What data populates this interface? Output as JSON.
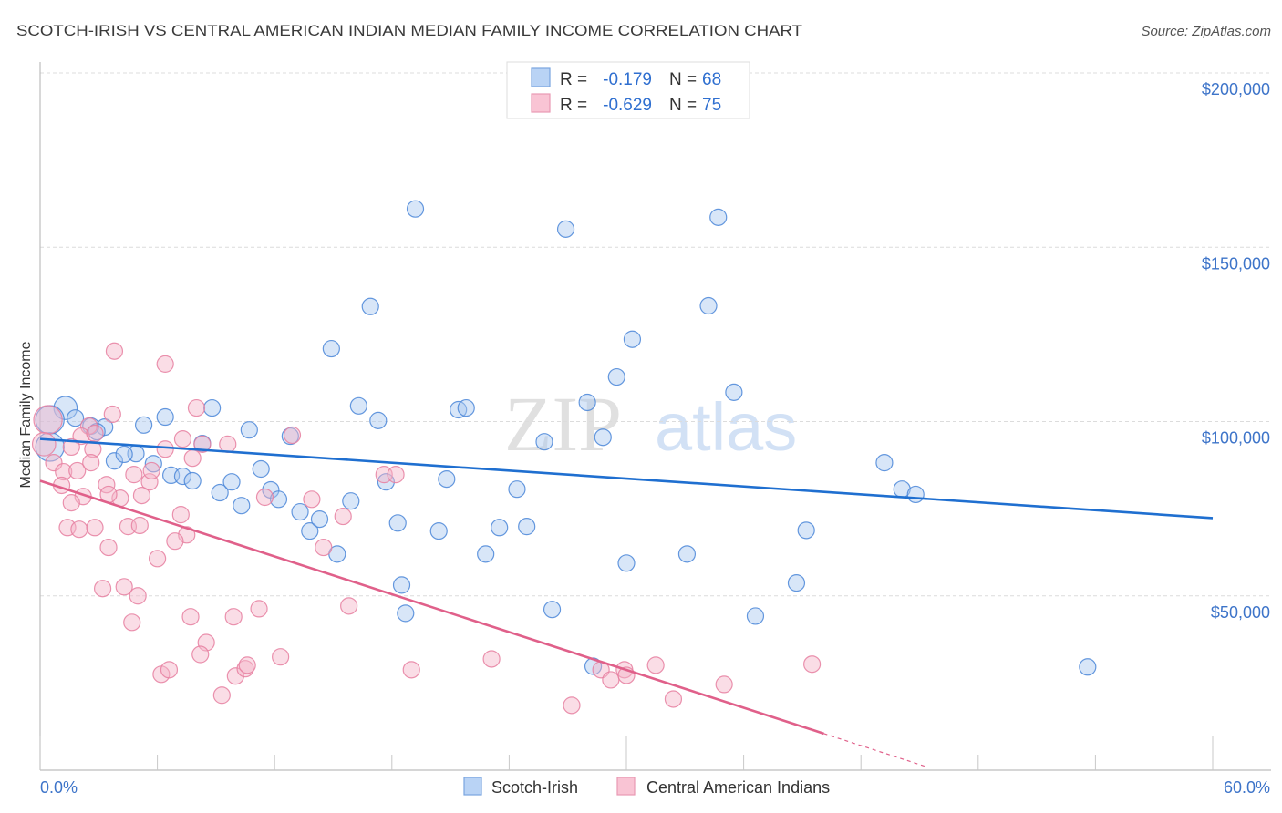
{
  "header": {
    "title": "SCOTCH-IRISH VS CENTRAL AMERICAN INDIAN MEDIAN FAMILY INCOME CORRELATION CHART",
    "source": "Source: ZipAtlas.com"
  },
  "watermark": {
    "zip": "ZIP",
    "atlas": "atlas"
  },
  "legend_top": [
    {
      "r_label": "R =",
      "r_value": "-0.179",
      "n_label": "N =",
      "n_value": "68"
    },
    {
      "r_label": "R =",
      "r_value": "-0.629",
      "n_label": "N =",
      "n_value": "75"
    }
  ],
  "legend_bottom": [
    {
      "label": "Scotch-Irish"
    },
    {
      "label": "Central American Indians"
    }
  ],
  "colors": {
    "scotch_irish_fill": "#a9c8f0",
    "scotch_irish_stroke": "#4a86d8",
    "scotch_irish_line": "#1f6fd0",
    "central_american_fill": "#f5b3c8",
    "central_american_stroke": "#e67fa0",
    "central_american_line": "#e0608a",
    "tick_label": "#3d74c9"
  },
  "chart_data": {
    "type": "scatter",
    "title": "SCOTCH-IRISH VS CENTRAL AMERICAN INDIAN MEDIAN FAMILY INCOME CORRELATION CHART",
    "xlabel": "",
    "ylabel": "Median Family Income",
    "xlim": [
      0,
      60
    ],
    "ylim": [
      0,
      210000
    ],
    "grid": true,
    "legend_position": "top-center",
    "x_ticks": [
      0,
      6,
      12,
      18,
      24,
      30,
      36,
      42,
      48,
      54,
      60
    ],
    "x_major_ticks": [
      0,
      30,
      60
    ],
    "x_tick_labels": [
      {
        "value": 0,
        "label": "0.0%"
      },
      {
        "value": 60,
        "label": "60.0%"
      }
    ],
    "y_ticks": [
      {
        "value": 50000,
        "label": "$50,000"
      },
      {
        "value": 100000,
        "label": "$100,000"
      },
      {
        "value": 150000,
        "label": "$150,000"
      },
      {
        "value": 200000,
        "label": "$200,000"
      }
    ],
    "series": [
      {
        "name": "Scotch-Irish",
        "key": "scotch_irish",
        "r": -0.179,
        "n": 68,
        "trend": {
          "x": [
            0,
            60
          ],
          "y": [
            95000,
            72300
          ]
        },
        "points": [
          [
            1.3,
            103900,
            2
          ],
          [
            0.5,
            100500,
            3
          ],
          [
            0.5,
            92700,
            3
          ],
          [
            1.8,
            101000,
            1
          ],
          [
            2.6,
            98700,
            1
          ],
          [
            3.3,
            98400,
            1
          ],
          [
            2.9,
            97100,
            1
          ],
          [
            3.8,
            88700,
            1
          ],
          [
            4.9,
            90800,
            1
          ],
          [
            4.3,
            90600,
            1
          ],
          [
            5.3,
            99000,
            1
          ],
          [
            5.8,
            87900,
            1
          ],
          [
            6.4,
            101300,
            1
          ],
          [
            6.7,
            84600,
            1
          ],
          [
            7.3,
            84300,
            1
          ],
          [
            7.8,
            83000,
            1
          ],
          [
            8.3,
            93700,
            1
          ],
          [
            8.8,
            103900,
            1
          ],
          [
            9.2,
            79600,
            1
          ],
          [
            9.8,
            82700,
            1
          ],
          [
            10.3,
            75900,
            1
          ],
          [
            10.7,
            97600,
            1
          ],
          [
            11.3,
            86400,
            1
          ],
          [
            11.8,
            80400,
            1
          ],
          [
            12.2,
            77700,
            1
          ],
          [
            12.8,
            95800,
            1
          ],
          [
            13.3,
            74100,
            1
          ],
          [
            13.8,
            68600,
            1
          ],
          [
            14.3,
            72000,
            1
          ],
          [
            14.9,
            120900,
            1
          ],
          [
            15.2,
            62000,
            1
          ],
          [
            15.9,
            77200,
            1
          ],
          [
            16.3,
            104500,
            1
          ],
          [
            16.9,
            133000,
            1
          ],
          [
            17.3,
            100300,
            1
          ],
          [
            17.7,
            82700,
            1
          ],
          [
            18.3,
            70900,
            1
          ],
          [
            18.5,
            53100,
            1
          ],
          [
            18.7,
            45000,
            1
          ],
          [
            19.2,
            161000,
            1
          ],
          [
            20.4,
            68600,
            1
          ],
          [
            20.8,
            83500,
            1
          ],
          [
            21.4,
            103400,
            1
          ],
          [
            21.8,
            103900,
            1
          ],
          [
            22.8,
            62000,
            1
          ],
          [
            23.5,
            69600,
            1
          ],
          [
            24.4,
            80600,
            1
          ],
          [
            24.9,
            69900,
            1
          ],
          [
            25.8,
            94200,
            1
          ],
          [
            26.2,
            46100,
            1
          ],
          [
            26.9,
            155200,
            1
          ],
          [
            28.0,
            105500,
            1
          ],
          [
            28.3,
            29800,
            1
          ],
          [
            28.8,
            95500,
            1
          ],
          [
            29.5,
            112800,
            1
          ],
          [
            30.0,
            59400,
            1
          ],
          [
            30.3,
            123600,
            1
          ],
          [
            33.1,
            62000,
            1
          ],
          [
            34.2,
            133200,
            1
          ],
          [
            34.7,
            158600,
            1
          ],
          [
            35.5,
            108400,
            1
          ],
          [
            36.6,
            44200,
            1
          ],
          [
            38.7,
            53700,
            1
          ],
          [
            39.2,
            68800,
            1
          ],
          [
            43.2,
            88200,
            1
          ],
          [
            44.1,
            80600,
            1
          ],
          [
            44.8,
            79100,
            1
          ],
          [
            53.6,
            29600,
            1
          ]
        ]
      },
      {
        "name": "Central American Indians",
        "key": "central_american",
        "r": -0.629,
        "n": 75,
        "trend": {
          "x": [
            0,
            40.1
          ],
          "y": [
            83000,
            10500
          ],
          "dashed_extension": {
            "x": [
              40.1,
              45.4
            ],
            "y": [
              10500,
              900
            ]
          }
        },
        "points": [
          [
            3.8,
            120200,
            1
          ],
          [
            6.4,
            116500,
            1
          ],
          [
            8.0,
            103900,
            1
          ],
          [
            3.7,
            102100,
            1
          ],
          [
            2.5,
            98700,
            1
          ],
          [
            2.1,
            95800,
            1
          ],
          [
            0.4,
            100500,
            3
          ],
          [
            0.2,
            93500,
            2
          ],
          [
            0.7,
            88200,
            1
          ],
          [
            1.2,
            85600,
            1
          ],
          [
            1.9,
            85900,
            1
          ],
          [
            1.6,
            92700,
            1
          ],
          [
            2.8,
            96600,
            1
          ],
          [
            2.7,
            92100,
            1
          ],
          [
            1.1,
            81700,
            1
          ],
          [
            2.6,
            88200,
            1
          ],
          [
            3.4,
            81900,
            1
          ],
          [
            2.2,
            78500,
            1
          ],
          [
            1.6,
            76700,
            1
          ],
          [
            4.8,
            84800,
            1
          ],
          [
            5.6,
            82700,
            1
          ],
          [
            5.7,
            85900,
            1
          ],
          [
            6.4,
            92100,
            1
          ],
          [
            7.3,
            95000,
            1
          ],
          [
            7.8,
            89500,
            1
          ],
          [
            8.3,
            93500,
            1
          ],
          [
            9.6,
            93500,
            1
          ],
          [
            5.2,
            78800,
            1
          ],
          [
            4.1,
            78000,
            1
          ],
          [
            4.5,
            69900,
            1
          ],
          [
            3.5,
            79100,
            1
          ],
          [
            1.4,
            69600,
            1
          ],
          [
            2.0,
            69100,
            1
          ],
          [
            2.8,
            69600,
            1
          ],
          [
            5.1,
            70200,
            1
          ],
          [
            7.2,
            73300,
            1
          ],
          [
            7.5,
            67500,
            1
          ],
          [
            6.9,
            65700,
            1
          ],
          [
            6.0,
            60700,
            1
          ],
          [
            3.5,
            63900,
            1
          ],
          [
            3.2,
            52100,
            1
          ],
          [
            4.3,
            52600,
            1
          ],
          [
            5.0,
            50000,
            1
          ],
          [
            4.7,
            42400,
            1
          ],
          [
            7.7,
            44000,
            1
          ],
          [
            8.5,
            36600,
            1
          ],
          [
            8.2,
            33200,
            1
          ],
          [
            6.2,
            27500,
            1
          ],
          [
            6.6,
            28800,
            1
          ],
          [
            9.3,
            21500,
            1
          ],
          [
            9.9,
            44000,
            1
          ],
          [
            10.0,
            27000,
            1
          ],
          [
            10.5,
            29100,
            1
          ],
          [
            10.6,
            30100,
            1
          ],
          [
            11.2,
            46300,
            1
          ],
          [
            11.5,
            78300,
            1
          ],
          [
            12.3,
            32500,
            1
          ],
          [
            12.9,
            96100,
            1
          ],
          [
            13.9,
            77700,
            1
          ],
          [
            14.5,
            63900,
            1
          ],
          [
            15.5,
            72800,
            1
          ],
          [
            15.8,
            47100,
            1
          ],
          [
            17.6,
            84800,
            1
          ],
          [
            18.2,
            84800,
            1
          ],
          [
            19.0,
            28800,
            1
          ],
          [
            23.1,
            31900,
            1
          ],
          [
            27.2,
            18600,
            1
          ],
          [
            28.7,
            28800,
            1
          ],
          [
            29.2,
            25900,
            1
          ],
          [
            29.9,
            28800,
            1
          ],
          [
            30.0,
            27200,
            1
          ],
          [
            31.5,
            30100,
            1
          ],
          [
            32.4,
            20400,
            1
          ],
          [
            35.0,
            24600,
            1
          ],
          [
            39.5,
            30400,
            1
          ]
        ]
      }
    ]
  }
}
